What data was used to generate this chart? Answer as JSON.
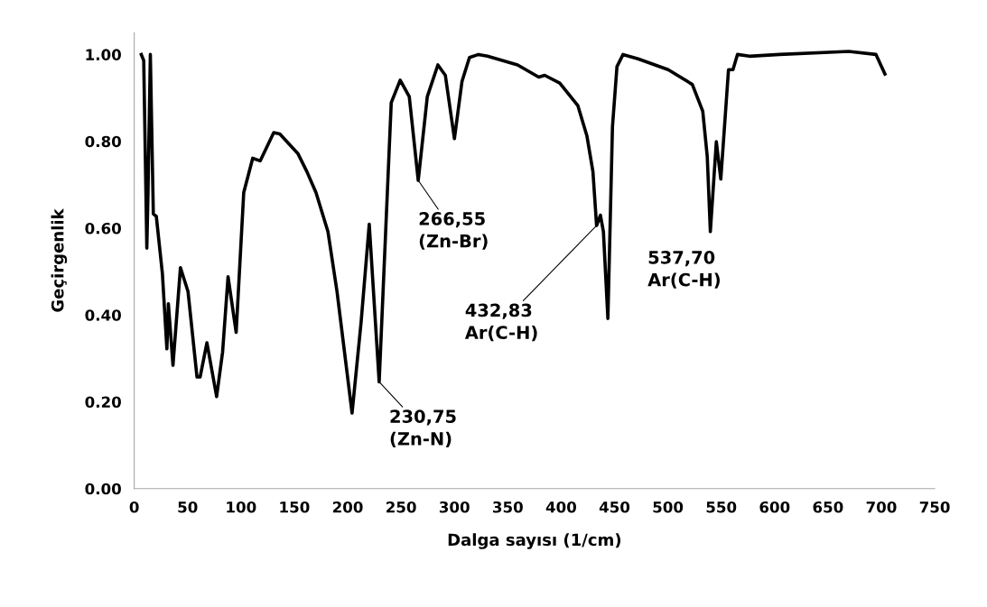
{
  "chart_data": {
    "type": "line",
    "xlabel": "Dalga sayısı (1/cm)",
    "ylabel": "Geçirgenlik",
    "xlim": [
      0,
      750
    ],
    "xticks": [
      0,
      50,
      100,
      150,
      200,
      250,
      300,
      350,
      400,
      450,
      500,
      550,
      600,
      650,
      700,
      750
    ],
    "ylim": [
      0,
      1.05
    ],
    "yticks": [
      {
        "value": 0,
        "label": "0.00"
      },
      {
        "value": 0.2,
        "label": "0.20"
      },
      {
        "value": 0.4,
        "label": "0.40"
      },
      {
        "value": 0.6,
        "label": "0.60"
      },
      {
        "value": 0.8,
        "label": "0.80"
      },
      {
        "value": 1.0,
        "label": "1.00"
      }
    ],
    "grid": false,
    "legend": false,
    "marker": "none",
    "line_style": "solid",
    "series": [
      {
        "color": "#000000",
        "x": [
          6.6,
          8.9,
          11.8,
          12.9,
          15.1,
          17.9,
          20.7,
          26.4,
          30.6,
          32.0,
          36.3,
          43.3,
          50.4,
          58.8,
          61.7,
          68.1,
          77.2,
          82.8,
          87.9,
          95.5,
          102.6,
          111.0,
          118.1,
          130.7,
          136.4,
          153.3,
          161.8,
          170.3,
          181.5,
          190.0,
          204.1,
          212.6,
          220.2,
          229.5,
          240.8,
          249.2,
          257.7,
          266.1,
          274.6,
          284.5,
          291.5,
          300.0,
          307.1,
          314.1,
          322.6,
          331.0,
          359.2,
          379.0,
          384.6,
          398.7,
          415.7,
          424.1,
          429.8,
          433.2,
          436.8,
          439.6,
          443.8,
          448.1,
          452.3,
          458.0,
          472.1,
          500.3,
          522.9,
          532.7,
          536.9,
          539.8,
          545.4,
          549.6,
          556.8,
          561.0,
          565.2,
          576.4,
          604.6,
          669.5,
          695.0,
          703.4
        ],
        "values": [
          1.0,
          0.986,
          0.554,
          0.68,
          1.0,
          0.633,
          0.627,
          0.495,
          0.322,
          0.426,
          0.284,
          0.509,
          0.454,
          0.257,
          0.257,
          0.336,
          0.212,
          0.315,
          0.488,
          0.36,
          0.682,
          0.761,
          0.755,
          0.82,
          0.817,
          0.772,
          0.73,
          0.682,
          0.592,
          0.454,
          0.174,
          0.384,
          0.609,
          0.246,
          0.889,
          0.941,
          0.903,
          0.71,
          0.903,
          0.976,
          0.952,
          0.806,
          0.938,
          0.993,
          1.0,
          0.996,
          0.976,
          0.948,
          0.952,
          0.934,
          0.882,
          0.813,
          0.73,
          0.606,
          0.63,
          0.592,
          0.392,
          0.834,
          0.972,
          1.0,
          0.99,
          0.965,
          0.931,
          0.869,
          0.765,
          0.592,
          0.799,
          0.713,
          0.965,
          0.965,
          1.0,
          0.996,
          1.0,
          1.007,
          1.0,
          0.955
        ]
      }
    ],
    "annotations": [
      {
        "text": "230,75\n(Zn-N)",
        "x": 229.5,
        "y": 0.246
      },
      {
        "text": "266,55\n(Zn-Br)",
        "x": 266.1,
        "y": 0.71
      },
      {
        "text": "432,83\nAr(C-H)",
        "x": 433.2,
        "y": 0.606
      },
      {
        "text": "537,70\nAr(C-H)",
        "x": 539.8,
        "y": 0.592
      }
    ]
  }
}
